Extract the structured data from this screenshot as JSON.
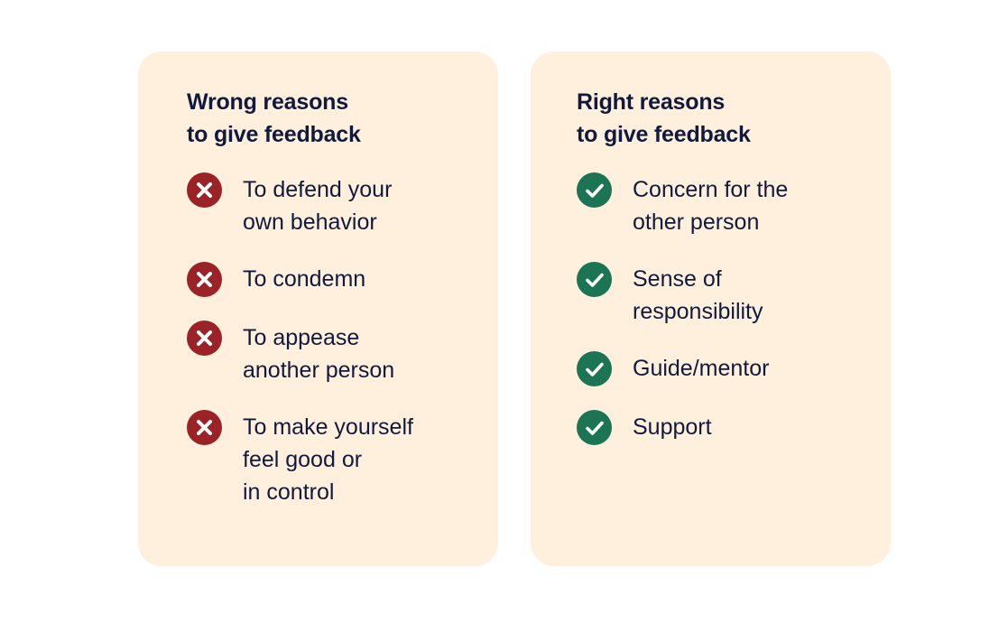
{
  "colors": {
    "card_bg": "#fef0dd",
    "text": "#111a3d",
    "wrong": "#9b2226",
    "right": "#1b7453"
  },
  "wrong": {
    "title": "Wrong reasons\nto give feedback",
    "icon": "x-circle-icon",
    "items": [
      {
        "text": "To defend your\nown behavior"
      },
      {
        "text": "To condemn"
      },
      {
        "text": "To appease\nanother person"
      },
      {
        "text": "To make yourself\nfeel good or\nin control"
      }
    ]
  },
  "right": {
    "title": "Right reasons\nto give feedback",
    "icon": "check-circle-icon",
    "items": [
      {
        "text": "Concern for the\nother person"
      },
      {
        "text": "Sense of\nresponsibility"
      },
      {
        "text": "Guide/mentor"
      },
      {
        "text": "Support"
      }
    ]
  }
}
